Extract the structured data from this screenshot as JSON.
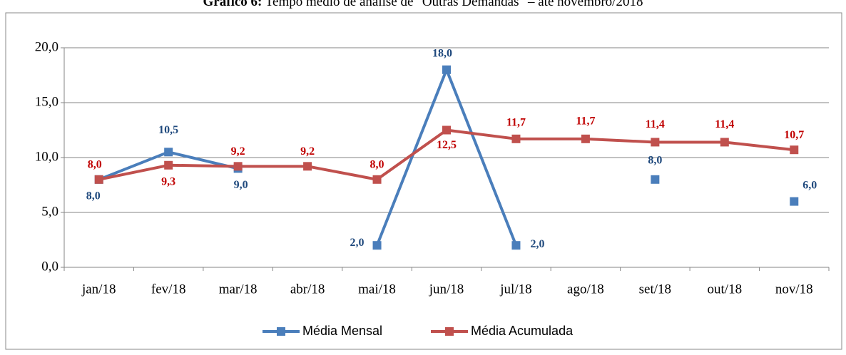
{
  "chart_data": {
    "type": "line",
    "title_label": "Gráfico 6:",
    "title": "Tempo médio de análise de \"Outras Demandas\" – até novembro/2018",
    "categories": [
      "jan/18",
      "fev/18",
      "mar/18",
      "abr/18",
      "mai/18",
      "jun/18",
      "jul/18",
      "ago/18",
      "set/18",
      "out/18",
      "nov/18"
    ],
    "series": [
      {
        "name": "Média Mensal",
        "color": "#4a7ebb",
        "label_color": "#1f497d",
        "values": [
          8.0,
          10.5,
          9.0,
          null,
          2.0,
          18.0,
          2.0,
          null,
          8.0,
          null,
          6.0
        ],
        "value_labels": [
          "8,0",
          "10,5",
          "9,0",
          null,
          "2,0",
          "18,0",
          "2,0",
          null,
          "8,0",
          null,
          "6,0"
        ]
      },
      {
        "name": "Média Acumulada",
        "color": "#c0504d",
        "label_color": "#c00000",
        "values": [
          8.0,
          9.3,
          9.2,
          9.2,
          8.0,
          12.5,
          11.7,
          11.7,
          11.4,
          11.4,
          10.7
        ],
        "value_labels": [
          "8,0",
          "9,3",
          "9,2",
          "9,2",
          "8,0",
          "12,5",
          "11,7",
          "11,7",
          "11,4",
          "11,4",
          "10,7"
        ]
      }
    ],
    "ylim": [
      0,
      20
    ],
    "yticks": [
      {
        "value": 0,
        "label": "0,0"
      },
      {
        "value": 5,
        "label": "5,0"
      },
      {
        "value": 10,
        "label": "10,0"
      },
      {
        "value": 15,
        "label": "15,0"
      },
      {
        "value": 20,
        "label": "20,0"
      }
    ],
    "grid": true,
    "legend": "bottom"
  }
}
